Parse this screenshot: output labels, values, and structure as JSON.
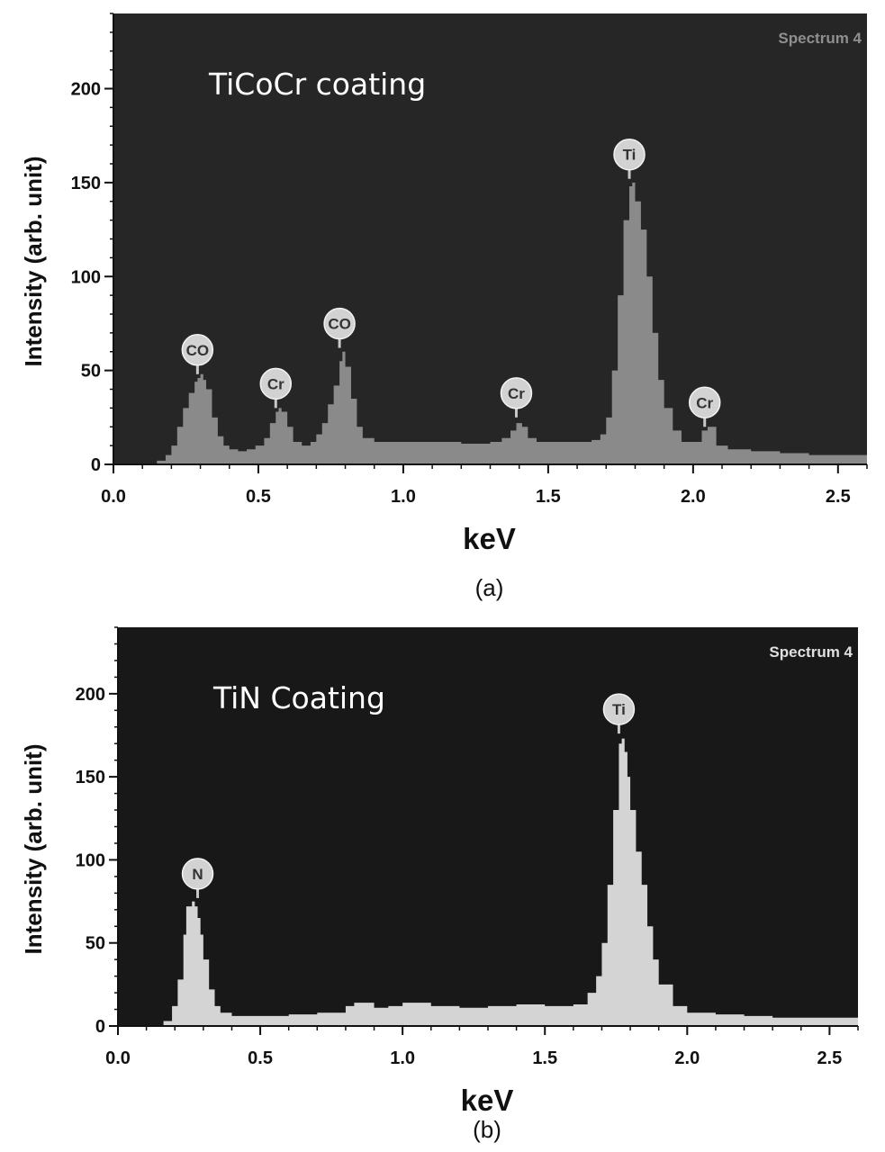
{
  "chart_data": [
    {
      "type": "area",
      "panel": "(a)",
      "title": "TiCoCr coating",
      "spectrum_tag": "Spectrum 4",
      "xlabel": "keV",
      "ylabel": "Intensity (arb. unit)",
      "xlim": [
        0,
        2.6
      ],
      "ylim": [
        0,
        240
      ],
      "xticks": [
        "0.0",
        "0.5",
        "1.0",
        "1.5",
        "2.0",
        "2.5"
      ],
      "yticks": [
        "0",
        "50",
        "100",
        "150",
        "200"
      ],
      "xtick_values": [
        0,
        0.5,
        1.0,
        1.5,
        2.0,
        2.5
      ],
      "ytick_values": [
        0,
        50,
        100,
        150,
        200
      ],
      "fill_color": "#8a8a8a",
      "background_color": "#262626",
      "tag_color": "#8f8f8f",
      "x": [
        0.13,
        0.15,
        0.18,
        0.2,
        0.22,
        0.24,
        0.26,
        0.28,
        0.29,
        0.3,
        0.31,
        0.32,
        0.34,
        0.36,
        0.38,
        0.4,
        0.43,
        0.46,
        0.49,
        0.52,
        0.54,
        0.56,
        0.57,
        0.58,
        0.6,
        0.62,
        0.65,
        0.68,
        0.7,
        0.72,
        0.74,
        0.76,
        0.78,
        0.79,
        0.8,
        0.82,
        0.84,
        0.86,
        0.9,
        1.0,
        1.1,
        1.2,
        1.3,
        1.34,
        1.37,
        1.39,
        1.41,
        1.43,
        1.46,
        1.5,
        1.55,
        1.6,
        1.65,
        1.68,
        1.7,
        1.72,
        1.74,
        1.76,
        1.78,
        1.79,
        1.8,
        1.82,
        1.84,
        1.86,
        1.88,
        1.9,
        1.93,
        1.96,
        2.0,
        2.03,
        2.05,
        2.08,
        2.12,
        2.2,
        2.3,
        2.4,
        2.5,
        2.6
      ],
      "values": [
        0,
        2,
        5,
        10,
        20,
        30,
        38,
        44,
        46,
        48,
        45,
        40,
        25,
        15,
        10,
        8,
        7,
        8,
        10,
        14,
        22,
        28,
        30,
        28,
        20,
        12,
        10,
        12,
        16,
        22,
        32,
        42,
        55,
        60,
        52,
        35,
        20,
        14,
        12,
        12,
        12,
        11,
        12,
        14,
        18,
        22,
        20,
        14,
        12,
        12,
        12,
        12,
        13,
        16,
        25,
        50,
        90,
        130,
        148,
        150,
        140,
        125,
        100,
        70,
        45,
        30,
        18,
        12,
        12,
        18,
        20,
        10,
        8,
        7,
        6,
        5,
        5,
        4
      ],
      "peaks": [
        {
          "label": "CO",
          "x": 0.29,
          "y": 48
        },
        {
          "label": "Cr",
          "x": 0.56,
          "y": 30
        },
        {
          "label": "CO",
          "x": 0.78,
          "y": 62
        },
        {
          "label": "Cr",
          "x": 1.39,
          "y": 25
        },
        {
          "label": "Ti",
          "x": 1.78,
          "y": 152
        },
        {
          "label": "Cr",
          "x": 2.04,
          "y": 20
        }
      ],
      "caption": "(a)"
    },
    {
      "type": "area",
      "panel": "(b)",
      "title": "TiN Coating",
      "spectrum_tag": "Spectrum 4",
      "xlabel": "keV",
      "ylabel": "Intensity (arb. unit)",
      "xlim": [
        0,
        2.6
      ],
      "ylim": [
        0,
        240
      ],
      "xticks": [
        "0.0",
        "0.5",
        "1.0",
        "1.5",
        "2.0",
        "2.5"
      ],
      "yticks": [
        "0",
        "50",
        "100",
        "150",
        "200"
      ],
      "xtick_values": [
        0,
        0.5,
        1.0,
        1.5,
        2.0,
        2.5
      ],
      "ytick_values": [
        0,
        50,
        100,
        150,
        200
      ],
      "fill_color": "#d4d4d4",
      "background_color": "#181818",
      "tag_color": "#e0e0e0",
      "x": [
        0.13,
        0.16,
        0.19,
        0.21,
        0.23,
        0.24,
        0.26,
        0.27,
        0.28,
        0.29,
        0.3,
        0.32,
        0.34,
        0.36,
        0.4,
        0.5,
        0.6,
        0.7,
        0.8,
        0.83,
        0.9,
        0.95,
        1.0,
        1.1,
        1.2,
        1.3,
        1.4,
        1.5,
        1.55,
        1.6,
        1.65,
        1.68,
        1.7,
        1.72,
        1.74,
        1.76,
        1.77,
        1.78,
        1.79,
        1.8,
        1.82,
        1.84,
        1.86,
        1.88,
        1.9,
        1.95,
        2.0,
        2.1,
        2.2,
        2.3,
        2.4,
        2.5,
        2.6
      ],
      "values": [
        0,
        3,
        12,
        28,
        55,
        72,
        75,
        72,
        65,
        55,
        40,
        22,
        12,
        8,
        6,
        6,
        7,
        8,
        12,
        14,
        11,
        12,
        14,
        12,
        11,
        12,
        13,
        12,
        12,
        13,
        20,
        30,
        50,
        85,
        130,
        170,
        173,
        165,
        150,
        130,
        105,
        85,
        60,
        40,
        25,
        12,
        8,
        7,
        6,
        5,
        5,
        5,
        4
      ],
      "peaks": [
        {
          "label": "N",
          "x": 0.28,
          "y": 77
        },
        {
          "label": "Ti",
          "x": 1.76,
          "y": 176
        }
      ],
      "caption": "(b)"
    }
  ]
}
